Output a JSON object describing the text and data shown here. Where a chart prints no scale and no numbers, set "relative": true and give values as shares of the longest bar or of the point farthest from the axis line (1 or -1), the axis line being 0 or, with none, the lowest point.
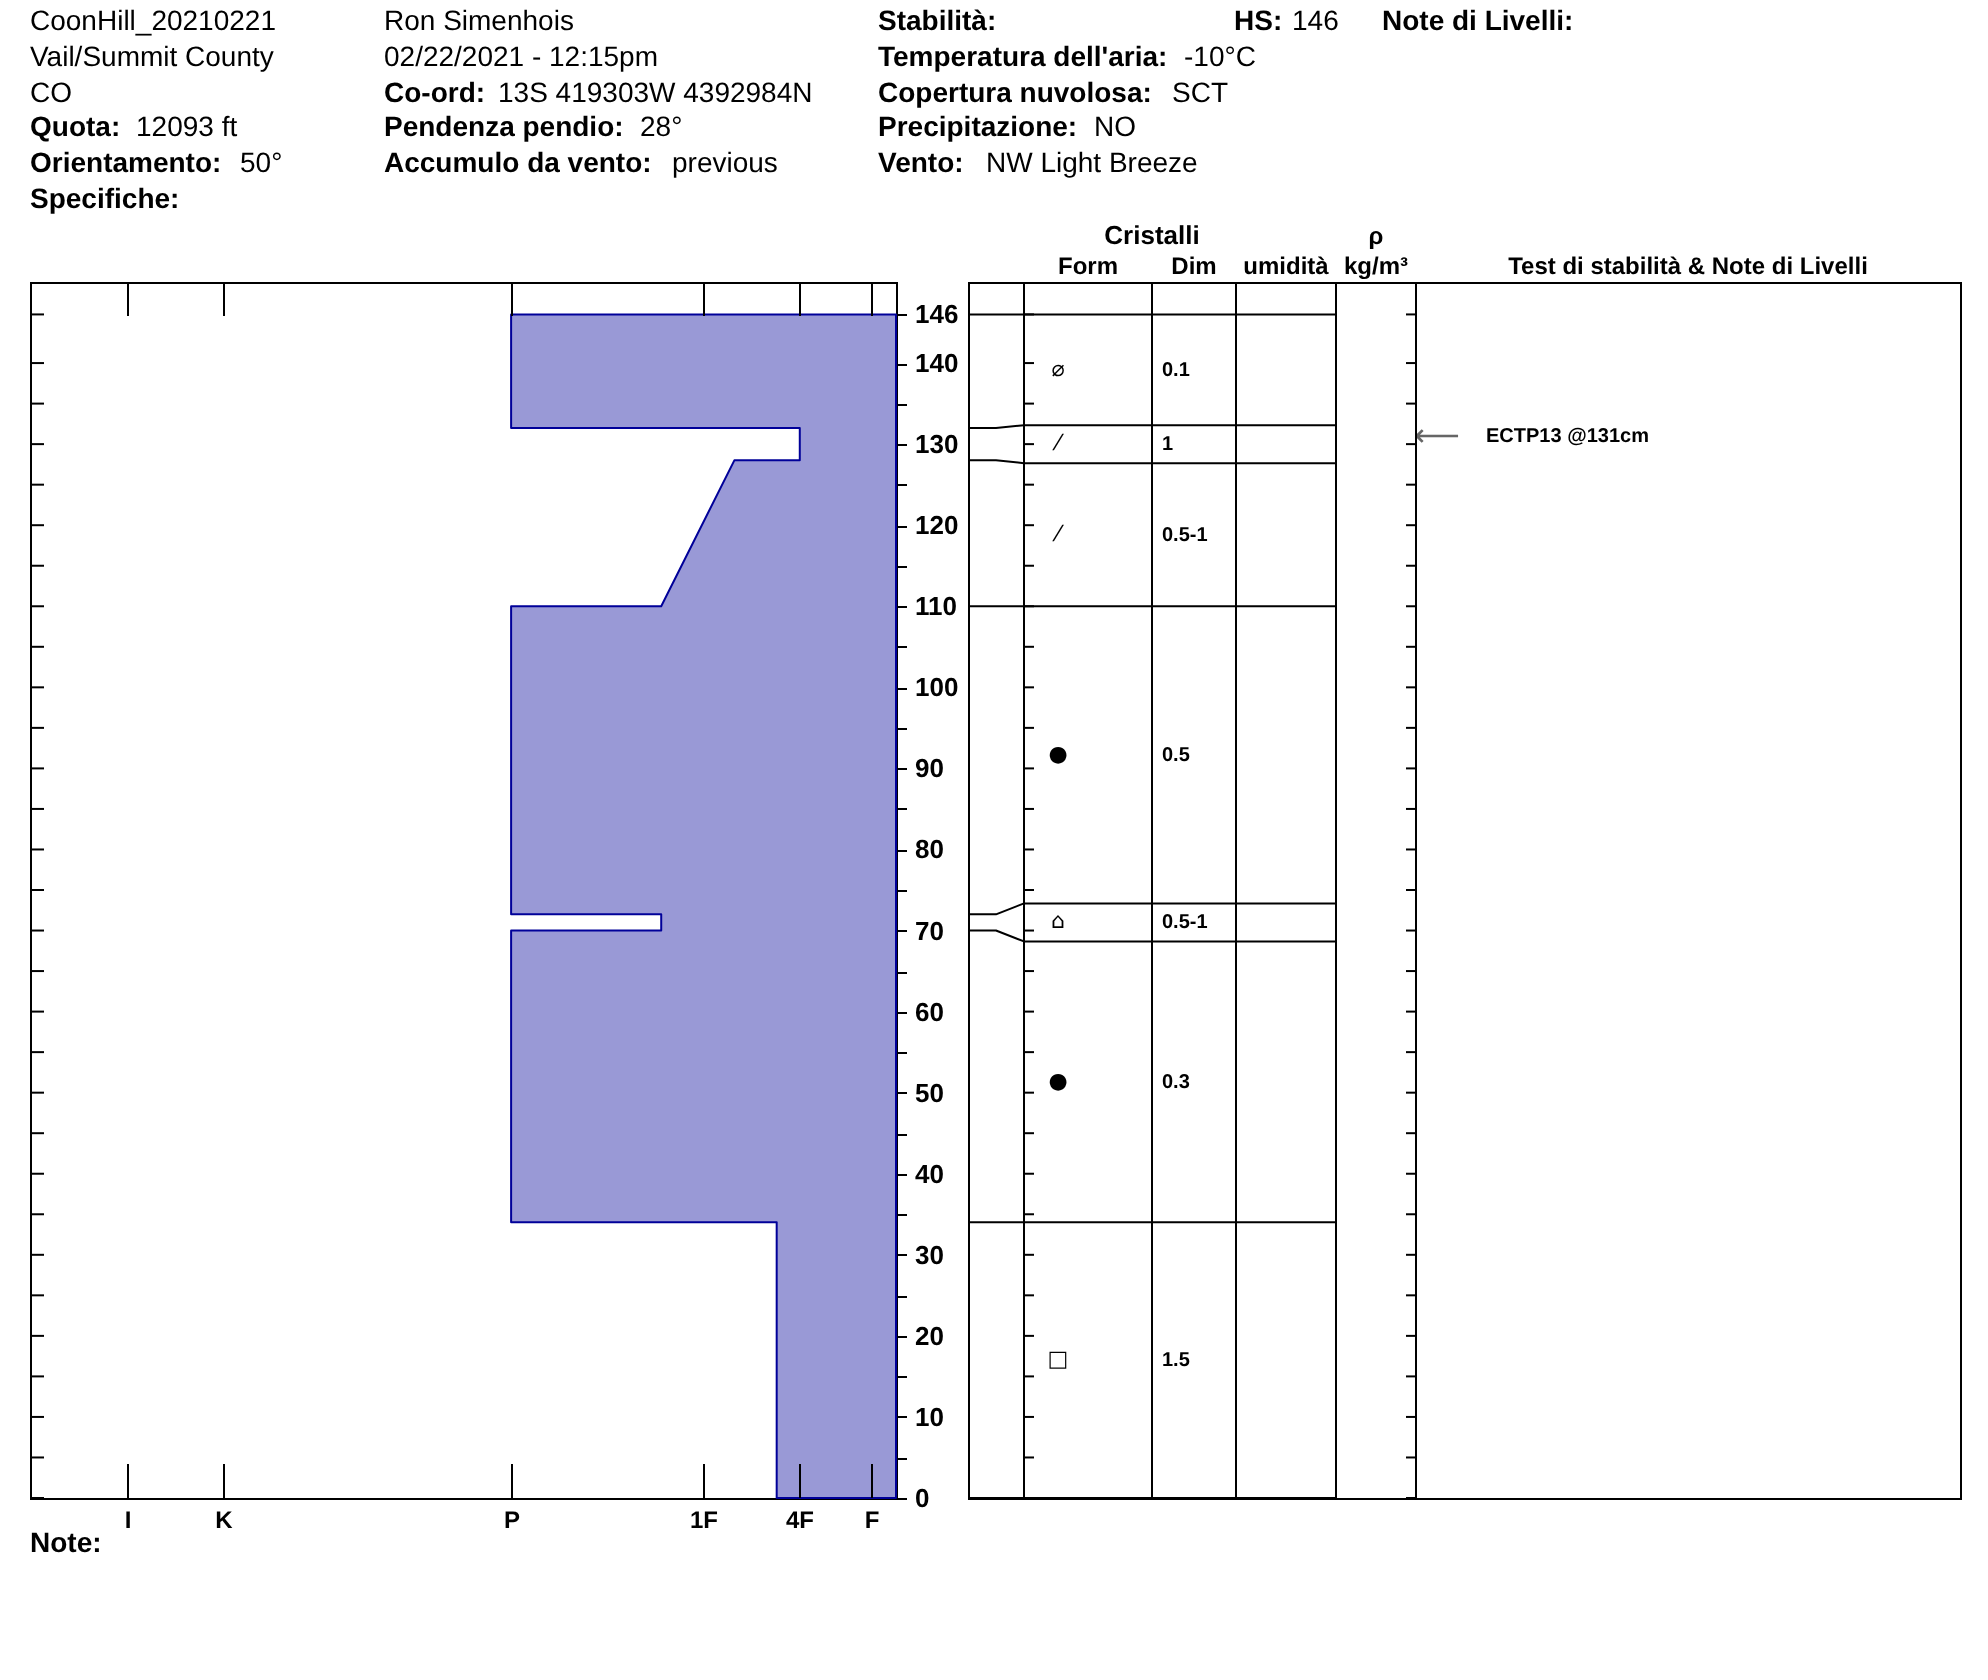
{
  "chart_data": [
    {
      "type": "area",
      "orientation": "horizontal",
      "relative": true,
      "x": [
        0,
        34,
        34,
        70,
        70,
        72,
        72,
        110,
        110,
        128,
        128,
        132,
        132,
        146
      ],
      "series": [
        {
          "color": "#9999d6",
          "values": [
            -0.31,
            -0.31,
            -1,
            -1,
            -0.61,
            -0.61,
            -1,
            -1,
            -0.61,
            -0.42,
            -0.25,
            -0.25,
            -1,
            -1
          ]
        }
      ],
      "ylim": [
        0,
        150
      ],
      "yticks": [
        0,
        {
          "value": 5,
          "label": null
        },
        10,
        {
          "value": 15,
          "label": null
        },
        20,
        {
          "value": 25,
          "label": null
        },
        30,
        {
          "value": 35,
          "label": null
        },
        40,
        {
          "value": 45,
          "label": null
        },
        50,
        {
          "value": 55,
          "label": null
        },
        60,
        {
          "value": 65,
          "label": null
        },
        70,
        {
          "value": 75,
          "label": null
        },
        80,
        {
          "value": 85,
          "label": null
        },
        90,
        {
          "value": 95,
          "label": null
        },
        100,
        {
          "value": 105,
          "label": null
        },
        110,
        {
          "value": 115,
          "label": null
        },
        120,
        {
          "value": 125,
          "label": null
        },
        130,
        {
          "value": 135,
          "label": null
        },
        140,
        146
      ],
      "annotations": [
        "CoonHill_20210221",
        "Ron Simenhois",
        "Stabilità:",
        "HS:",
        "146",
        "Note di Livelli:",
        "Vail/Summit County",
        "02/22/2021 - 12:15pm",
        "Temperatura dell'aria:",
        "-10°C",
        "CO",
        "Co-ord:",
        "13S 419303W 4392984N",
        "Copertura nuvolosa:",
        "SCT",
        "Quota:",
        "12093 ft",
        "Pendenza pendio:",
        "28°",
        "Precipitazione:",
        "NO",
        "Orientamento:",
        "50°",
        "Accumulo da vento:",
        "previous",
        "Vento:",
        "NW Light Breeze",
        "Specifiche:",
        "I",
        "K",
        "P",
        "1F",
        "4F",
        "F",
        "Note:",
        "⟵",
        "ECTP13 @131cm"
      ]
    },
    {
      "type": "other",
      "title": "Cristalli",
      "categories": [
        null,
        "Form",
        "Dim",
        "umidità",
        "ρ kg/m³",
        "Test di stabilità & Note di Livelli"
      ],
      "annotations": [
        "⌀",
        "0.1",
        "⁄",
        "1",
        "⁄",
        "0.5-1",
        "●",
        "0.5",
        "⌂",
        "0.5-1",
        "●",
        "0.3",
        "□",
        "1.5"
      ]
    }
  ]
}
